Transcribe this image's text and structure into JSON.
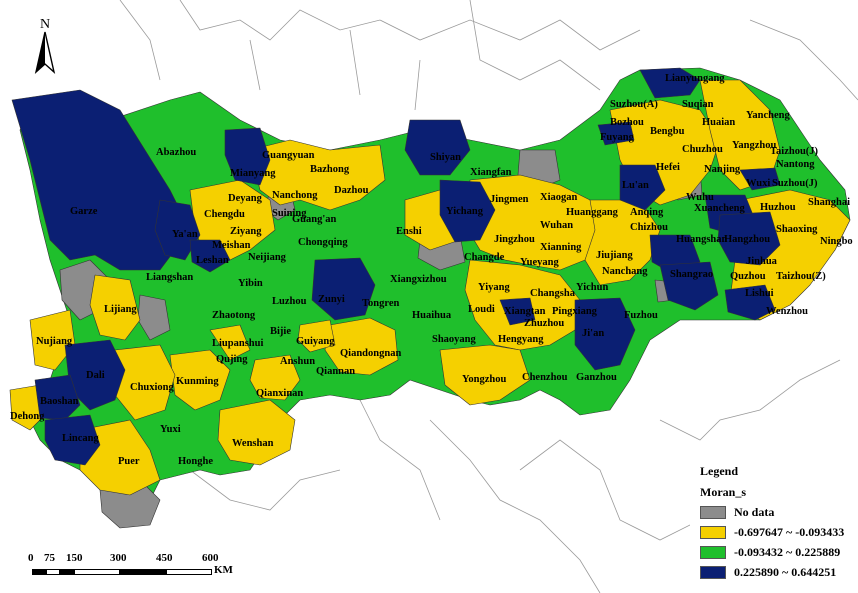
{
  "legend": {
    "title": "Legend",
    "field": "Moran_s",
    "classes": [
      {
        "label": "No data",
        "color": "#8c8c8c"
      },
      {
        "label": "-0.697647 ~ -0.093433",
        "color": "#f5d000"
      },
      {
        "label": "-0.093432 ~ 0.225889",
        "color": "#1fbf2c"
      },
      {
        "label": "0.225890 ~ 0.644251",
        "color": "#0b1f73"
      }
    ]
  },
  "north_arrow": {
    "label": "N"
  },
  "scale_bar": {
    "ticks": [
      "0",
      "75",
      "150",
      "300",
      "450",
      "600"
    ],
    "unit": "KM"
  },
  "cities": [
    "Lianyungang",
    "Suzhou(A)",
    "Suqian",
    "Bozhou",
    "Huaian",
    "Yancheng",
    "Fuyang",
    "Bengbu",
    "Chuzhou",
    "Yangzhou",
    "Taizhou(J)",
    "Hefei",
    "Nanjing",
    "Nantong",
    "Lu'an",
    "Wuxi",
    "Suzhou(J)",
    "Shanghai",
    "Huzhou",
    "Xuancheng",
    "Anqing",
    "Chizhou",
    "Huangshan",
    "Hangzhou",
    "Shaoxing",
    "Ningbo",
    "Jinhua",
    "Quzhou",
    "Taizhou(Z)",
    "Lishui",
    "Wenzhou",
    "Shangrao",
    "Wuhu",
    "Jiujiang",
    "Nanchang",
    "Yichun",
    "Fuzhou",
    "Ji'an",
    "Ganzhou",
    "Pingxiang",
    "Zhuzhou",
    "Xiangtan",
    "Changsha",
    "Yueyang",
    "Xianning",
    "Huanggang",
    "Xiaogan",
    "Wuhan",
    "Jingmen",
    "Xiangfan",
    "Shiyan",
    "Yichang",
    "Jingzhou",
    "Changde",
    "Yiyang",
    "Loudi",
    "Hengyang",
    "Shaoyang",
    "Chenzhou",
    "Yongzhou",
    "Huaihua",
    "Xiangxizhou",
    "Enshi",
    "Tongren",
    "Zunyi",
    "Chongqing",
    "Dazhou",
    "Bazhong",
    "Guangyuan",
    "Mianyang",
    "Nanchong",
    "Guang'an",
    "Deyang",
    "Chengdu",
    "Ziyang",
    "Suining",
    "Meishan",
    "Neijiang",
    "Leshan",
    "Ya'an",
    "Abazhou",
    "Garze",
    "Liangshan",
    "Yibin",
    "Luzhou",
    "Zhaotong",
    "Bijie",
    "Liupanshui",
    "Guiyang",
    "Qiandongnan",
    "Qiannan",
    "Anshun",
    "Qianxinan",
    "Qujing",
    "Kunming",
    "Chuxiong",
    "Lijiang",
    "Nujiang",
    "Dali",
    "Baoshan",
    "Dehong",
    "Lincang",
    "Puer",
    "Yuxi",
    "Honghe",
    "Wenshan"
  ]
}
